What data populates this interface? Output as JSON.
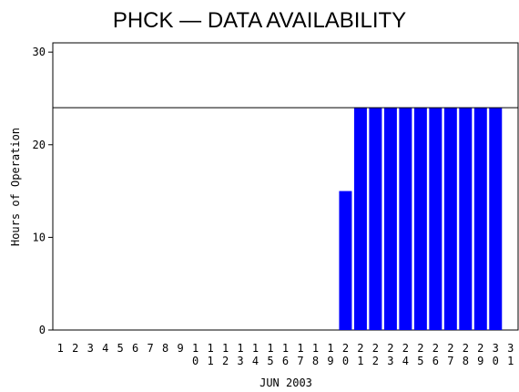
{
  "chart_data": {
    "type": "bar",
    "title": "PHCK — DATA AVAILABILITY",
    "x_label": "JUN 2003",
    "y_label": "Hours of Operation",
    "categories": [
      "1",
      "2",
      "3",
      "4",
      "5",
      "6",
      "7",
      "8",
      "9",
      "10",
      "11",
      "12",
      "13",
      "14",
      "15",
      "16",
      "17",
      "18",
      "19",
      "20",
      "21",
      "22",
      "23",
      "24",
      "25",
      "26",
      "27",
      "28",
      "29",
      "30",
      "31"
    ],
    "values": [
      0,
      0,
      0,
      0,
      0,
      0,
      0,
      0,
      0,
      0,
      0,
      0,
      0,
      0,
      0,
      0,
      0,
      0,
      0,
      15,
      24,
      24,
      24,
      24,
      24,
      24,
      24,
      24,
      24,
      24,
      0
    ],
    "color": "#0000ff",
    "reference_line": 24,
    "ylim": [
      0,
      31
    ],
    "yticks": [
      0,
      10,
      20,
      30
    ]
  }
}
